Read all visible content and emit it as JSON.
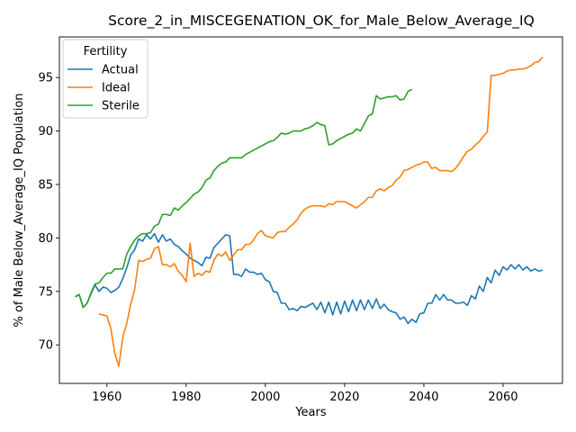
{
  "chart_data": {
    "type": "line",
    "title": "Score_2_in_MISCEGENATION_OK_for_Male_Below_Average_IQ",
    "xlabel": "Years",
    "ylabel": "% of Male Below_Average_IQ Population",
    "xlim": [
      1948,
      2075
    ],
    "ylim": [
      66.4,
      98.8
    ],
    "xticks": [
      1960,
      1980,
      2000,
      2020,
      2040,
      2060
    ],
    "yticks": [
      70,
      75,
      80,
      85,
      90,
      95
    ],
    "legend": {
      "title": "Fertility",
      "placement": "upper left"
    },
    "grid": false,
    "series": [
      {
        "name": "Actual",
        "color": "#1f77b4",
        "points": [
          [
            1952,
            74.5
          ],
          [
            1953,
            74.7
          ],
          [
            1954,
            73.5
          ],
          [
            1955,
            73.9
          ],
          [
            1956,
            74.8
          ],
          [
            1957,
            75.6
          ],
          [
            1958,
            75.0
          ],
          [
            1959,
            75.4
          ],
          [
            1960,
            75.3
          ],
          [
            1961,
            74.9
          ],
          [
            1962,
            75.1
          ],
          [
            1963,
            75.4
          ],
          [
            1964,
            76.2
          ],
          [
            1965,
            77.2
          ],
          [
            1966,
            78.4
          ],
          [
            1967,
            78.9
          ],
          [
            1968,
            79.9
          ],
          [
            1969,
            79.7
          ],
          [
            1970,
            80.3
          ],
          [
            1971,
            79.9
          ],
          [
            1972,
            80.4
          ],
          [
            1973,
            79.6
          ],
          [
            1974,
            80.3
          ],
          [
            1975,
            79.7
          ],
          [
            1976,
            79.9
          ],
          [
            1977,
            79.4
          ],
          [
            1978,
            79.2
          ],
          [
            1979,
            78.8
          ],
          [
            1980,
            78.5
          ],
          [
            1981,
            78.1
          ],
          [
            1982,
            77.9
          ],
          [
            1983,
            77.7
          ],
          [
            1984,
            77.4
          ],
          [
            1985,
            78.2
          ],
          [
            1986,
            78.1
          ],
          [
            1987,
            79.1
          ],
          [
            1988,
            79.5
          ],
          [
            1989,
            79.9
          ],
          [
            1990,
            80.3
          ],
          [
            1991,
            80.2
          ],
          [
            1992,
            76.6
          ],
          [
            1993,
            76.6
          ],
          [
            1994,
            76.4
          ],
          [
            1995,
            77.1
          ],
          [
            1996,
            76.8
          ],
          [
            1997,
            76.8
          ],
          [
            1998,
            76.6
          ],
          [
            1999,
            76.7
          ],
          [
            2000,
            76.1
          ],
          [
            2001,
            75.9
          ],
          [
            2002,
            75.0
          ],
          [
            2003,
            74.9
          ],
          [
            2004,
            73.9
          ],
          [
            2005,
            73.9
          ],
          [
            2006,
            73.3
          ],
          [
            2007,
            73.4
          ],
          [
            2008,
            73.2
          ],
          [
            2009,
            73.6
          ],
          [
            2010,
            73.5
          ],
          [
            2011,
            73.7
          ],
          [
            2012,
            73.9
          ],
          [
            2013,
            73.3
          ],
          [
            2014,
            74.0
          ],
          [
            2015,
            73.0
          ],
          [
            2016,
            74.0
          ],
          [
            2017,
            72.8
          ],
          [
            2018,
            74.0
          ],
          [
            2019,
            72.9
          ],
          [
            2020,
            74.1
          ],
          [
            2021,
            73.1
          ],
          [
            2022,
            74.2
          ],
          [
            2023,
            73.2
          ],
          [
            2024,
            74.2
          ],
          [
            2025,
            73.3
          ],
          [
            2026,
            74.2
          ],
          [
            2027,
            73.4
          ],
          [
            2028,
            74.3
          ],
          [
            2029,
            73.4
          ],
          [
            2030,
            73.8
          ],
          [
            2031,
            73.3
          ],
          [
            2032,
            73.1
          ],
          [
            2033,
            73.0
          ],
          [
            2034,
            72.4
          ],
          [
            2035,
            72.6
          ],
          [
            2036,
            72.0
          ],
          [
            2037,
            72.4
          ],
          [
            2038,
            72.1
          ],
          [
            2039,
            72.9
          ],
          [
            2040,
            73.0
          ],
          [
            2041,
            73.9
          ],
          [
            2042,
            73.9
          ],
          [
            2043,
            74.7
          ],
          [
            2044,
            74.2
          ],
          [
            2045,
            74.7
          ],
          [
            2046,
            74.2
          ],
          [
            2047,
            74.2
          ],
          [
            2048,
            73.9
          ],
          [
            2049,
            73.9
          ],
          [
            2050,
            74.0
          ],
          [
            2051,
            73.7
          ],
          [
            2052,
            74.6
          ],
          [
            2053,
            74.3
          ],
          [
            2054,
            75.5
          ],
          [
            2055,
            75.0
          ],
          [
            2056,
            76.3
          ],
          [
            2057,
            75.8
          ],
          [
            2058,
            77.0
          ],
          [
            2059,
            76.5
          ],
          [
            2060,
            77.3
          ],
          [
            2061,
            77.0
          ],
          [
            2062,
            77.5
          ],
          [
            2063,
            77.1
          ],
          [
            2064,
            77.5
          ],
          [
            2065,
            77.0
          ],
          [
            2066,
            77.3
          ],
          [
            2067,
            76.9
          ],
          [
            2068,
            77.1
          ],
          [
            2069,
            76.9
          ],
          [
            2070,
            77.0
          ]
        ]
      },
      {
        "name": "Ideal",
        "color": "#ff7f0e",
        "points": [
          [
            1958,
            72.9
          ],
          [
            1959,
            72.8
          ],
          [
            1960,
            72.7
          ],
          [
            1961,
            71.5
          ],
          [
            1962,
            69.2
          ],
          [
            1963,
            68.0
          ],
          [
            1964,
            70.7
          ],
          [
            1965,
            72.0
          ],
          [
            1966,
            73.8
          ],
          [
            1967,
            75.2
          ],
          [
            1968,
            77.9
          ],
          [
            1969,
            77.8
          ],
          [
            1970,
            78.0
          ],
          [
            1971,
            78.1
          ],
          [
            1972,
            79.0
          ],
          [
            1973,
            79.2
          ],
          [
            1974,
            77.5
          ],
          [
            1975,
            77.5
          ],
          [
            1976,
            77.3
          ],
          [
            1977,
            77.6
          ],
          [
            1978,
            76.9
          ],
          [
            1979,
            76.5
          ],
          [
            1980,
            75.9
          ],
          [
            1981,
            79.5
          ],
          [
            1982,
            76.4
          ],
          [
            1983,
            76.7
          ],
          [
            1984,
            76.5
          ],
          [
            1985,
            76.9
          ],
          [
            1986,
            76.8
          ],
          [
            1987,
            77.9
          ],
          [
            1988,
            78.5
          ],
          [
            1989,
            78.3
          ],
          [
            1990,
            78.7
          ],
          [
            1991,
            77.9
          ],
          [
            1992,
            78.4
          ],
          [
            1993,
            78.9
          ],
          [
            1994,
            78.9
          ],
          [
            1995,
            79.4
          ],
          [
            1996,
            79.4
          ],
          [
            1997,
            79.8
          ],
          [
            1998,
            80.4
          ],
          [
            1999,
            80.7
          ],
          [
            2000,
            80.2
          ],
          [
            2001,
            80.1
          ],
          [
            2002,
            80.0
          ],
          [
            2003,
            80.5
          ],
          [
            2004,
            80.6
          ],
          [
            2005,
            80.6
          ],
          [
            2006,
            81.0
          ],
          [
            2007,
            81.3
          ],
          [
            2008,
            81.7
          ],
          [
            2009,
            82.3
          ],
          [
            2010,
            82.7
          ],
          [
            2011,
            82.9
          ],
          [
            2012,
            83.0
          ],
          [
            2013,
            83.0
          ],
          [
            2014,
            83.0
          ],
          [
            2015,
            82.9
          ],
          [
            2016,
            83.2
          ],
          [
            2017,
            83.1
          ],
          [
            2018,
            83.4
          ],
          [
            2019,
            83.4
          ],
          [
            2020,
            83.4
          ],
          [
            2021,
            83.2
          ],
          [
            2022,
            83.0
          ],
          [
            2023,
            82.8
          ],
          [
            2024,
            83.1
          ],
          [
            2025,
            83.4
          ],
          [
            2026,
            83.8
          ],
          [
            2027,
            83.8
          ],
          [
            2028,
            84.4
          ],
          [
            2029,
            84.6
          ],
          [
            2030,
            84.4
          ],
          [
            2031,
            84.7
          ],
          [
            2032,
            84.9
          ],
          [
            2033,
            85.4
          ],
          [
            2034,
            85.7
          ],
          [
            2035,
            86.3
          ],
          [
            2036,
            86.4
          ],
          [
            2037,
            86.6
          ],
          [
            2038,
            86.8
          ],
          [
            2039,
            86.9
          ],
          [
            2040,
            87.1
          ],
          [
            2041,
            87.1
          ],
          [
            2042,
            86.5
          ],
          [
            2043,
            86.6
          ],
          [
            2044,
            86.3
          ],
          [
            2045,
            86.3
          ],
          [
            2046,
            86.3
          ],
          [
            2047,
            86.2
          ],
          [
            2048,
            86.5
          ],
          [
            2049,
            87.0
          ],
          [
            2050,
            87.6
          ],
          [
            2051,
            88.1
          ],
          [
            2052,
            88.3
          ],
          [
            2053,
            88.7
          ],
          [
            2054,
            89.0
          ],
          [
            2055,
            89.5
          ],
          [
            2056,
            89.9
          ],
          [
            2057,
            95.2
          ],
          [
            2058,
            95.2
          ],
          [
            2059,
            95.3
          ],
          [
            2060,
            95.4
          ],
          [
            2061,
            95.6
          ],
          [
            2062,
            95.7
          ],
          [
            2063,
            95.7
          ],
          [
            2064,
            95.8
          ],
          [
            2065,
            95.8
          ],
          [
            2066,
            95.9
          ],
          [
            2067,
            96.1
          ],
          [
            2068,
            96.4
          ],
          [
            2069,
            96.5
          ],
          [
            2070,
            96.9
          ]
        ]
      },
      {
        "name": "Sterile",
        "color": "#2ca02c",
        "points": [
          [
            1952,
            74.5
          ],
          [
            1953,
            74.7
          ],
          [
            1954,
            73.5
          ],
          [
            1955,
            73.9
          ],
          [
            1956,
            74.9
          ],
          [
            1957,
            75.7
          ],
          [
            1958,
            75.8
          ],
          [
            1959,
            76.3
          ],
          [
            1960,
            76.7
          ],
          [
            1961,
            76.7
          ],
          [
            1962,
            77.1
          ],
          [
            1963,
            77.1
          ],
          [
            1964,
            77.1
          ],
          [
            1965,
            78.5
          ],
          [
            1966,
            79.2
          ],
          [
            1967,
            79.8
          ],
          [
            1968,
            80.2
          ],
          [
            1969,
            80.4
          ],
          [
            1970,
            80.4
          ],
          [
            1971,
            80.5
          ],
          [
            1972,
            81.1
          ],
          [
            1973,
            81.3
          ],
          [
            1974,
            82.2
          ],
          [
            1975,
            82.2
          ],
          [
            1976,
            82.1
          ],
          [
            1977,
            82.8
          ],
          [
            1978,
            82.6
          ],
          [
            1979,
            83.0
          ],
          [
            1980,
            83.3
          ],
          [
            1981,
            83.7
          ],
          [
            1982,
            84.1
          ],
          [
            1983,
            84.3
          ],
          [
            1984,
            84.7
          ],
          [
            1985,
            85.4
          ],
          [
            1986,
            85.6
          ],
          [
            1987,
            86.3
          ],
          [
            1988,
            86.7
          ],
          [
            1989,
            87.0
          ],
          [
            1990,
            87.1
          ],
          [
            1991,
            87.5
          ],
          [
            1992,
            87.5
          ],
          [
            1993,
            87.5
          ],
          [
            1994,
            87.5
          ],
          [
            1995,
            87.8
          ],
          [
            1996,
            88.0
          ],
          [
            1997,
            88.2
          ],
          [
            1998,
            88.4
          ],
          [
            1999,
            88.6
          ],
          [
            2000,
            88.8
          ],
          [
            2001,
            89.0
          ],
          [
            2002,
            89.1
          ],
          [
            2003,
            89.4
          ],
          [
            2004,
            89.8
          ],
          [
            2005,
            89.7
          ],
          [
            2006,
            89.8
          ],
          [
            2007,
            90.0
          ],
          [
            2008,
            90.0
          ],
          [
            2009,
            90.0
          ],
          [
            2010,
            90.2
          ],
          [
            2011,
            90.3
          ],
          [
            2012,
            90.5
          ],
          [
            2013,
            90.8
          ],
          [
            2014,
            90.6
          ],
          [
            2015,
            90.5
          ],
          [
            2016,
            88.7
          ],
          [
            2017,
            88.8
          ],
          [
            2018,
            89.1
          ],
          [
            2019,
            89.3
          ],
          [
            2020,
            89.5
          ],
          [
            2021,
            89.7
          ],
          [
            2022,
            89.8
          ],
          [
            2023,
            90.2
          ],
          [
            2024,
            90.0
          ],
          [
            2025,
            90.7
          ],
          [
            2026,
            91.4
          ],
          [
            2027,
            91.6
          ],
          [
            2028,
            93.3
          ],
          [
            2029,
            93.0
          ],
          [
            2030,
            93.1
          ],
          [
            2031,
            93.2
          ],
          [
            2032,
            93.2
          ],
          [
            2033,
            93.3
          ],
          [
            2034,
            92.9
          ],
          [
            2035,
            93.0
          ],
          [
            2036,
            93.7
          ],
          [
            2037,
            93.9
          ]
        ]
      }
    ]
  }
}
